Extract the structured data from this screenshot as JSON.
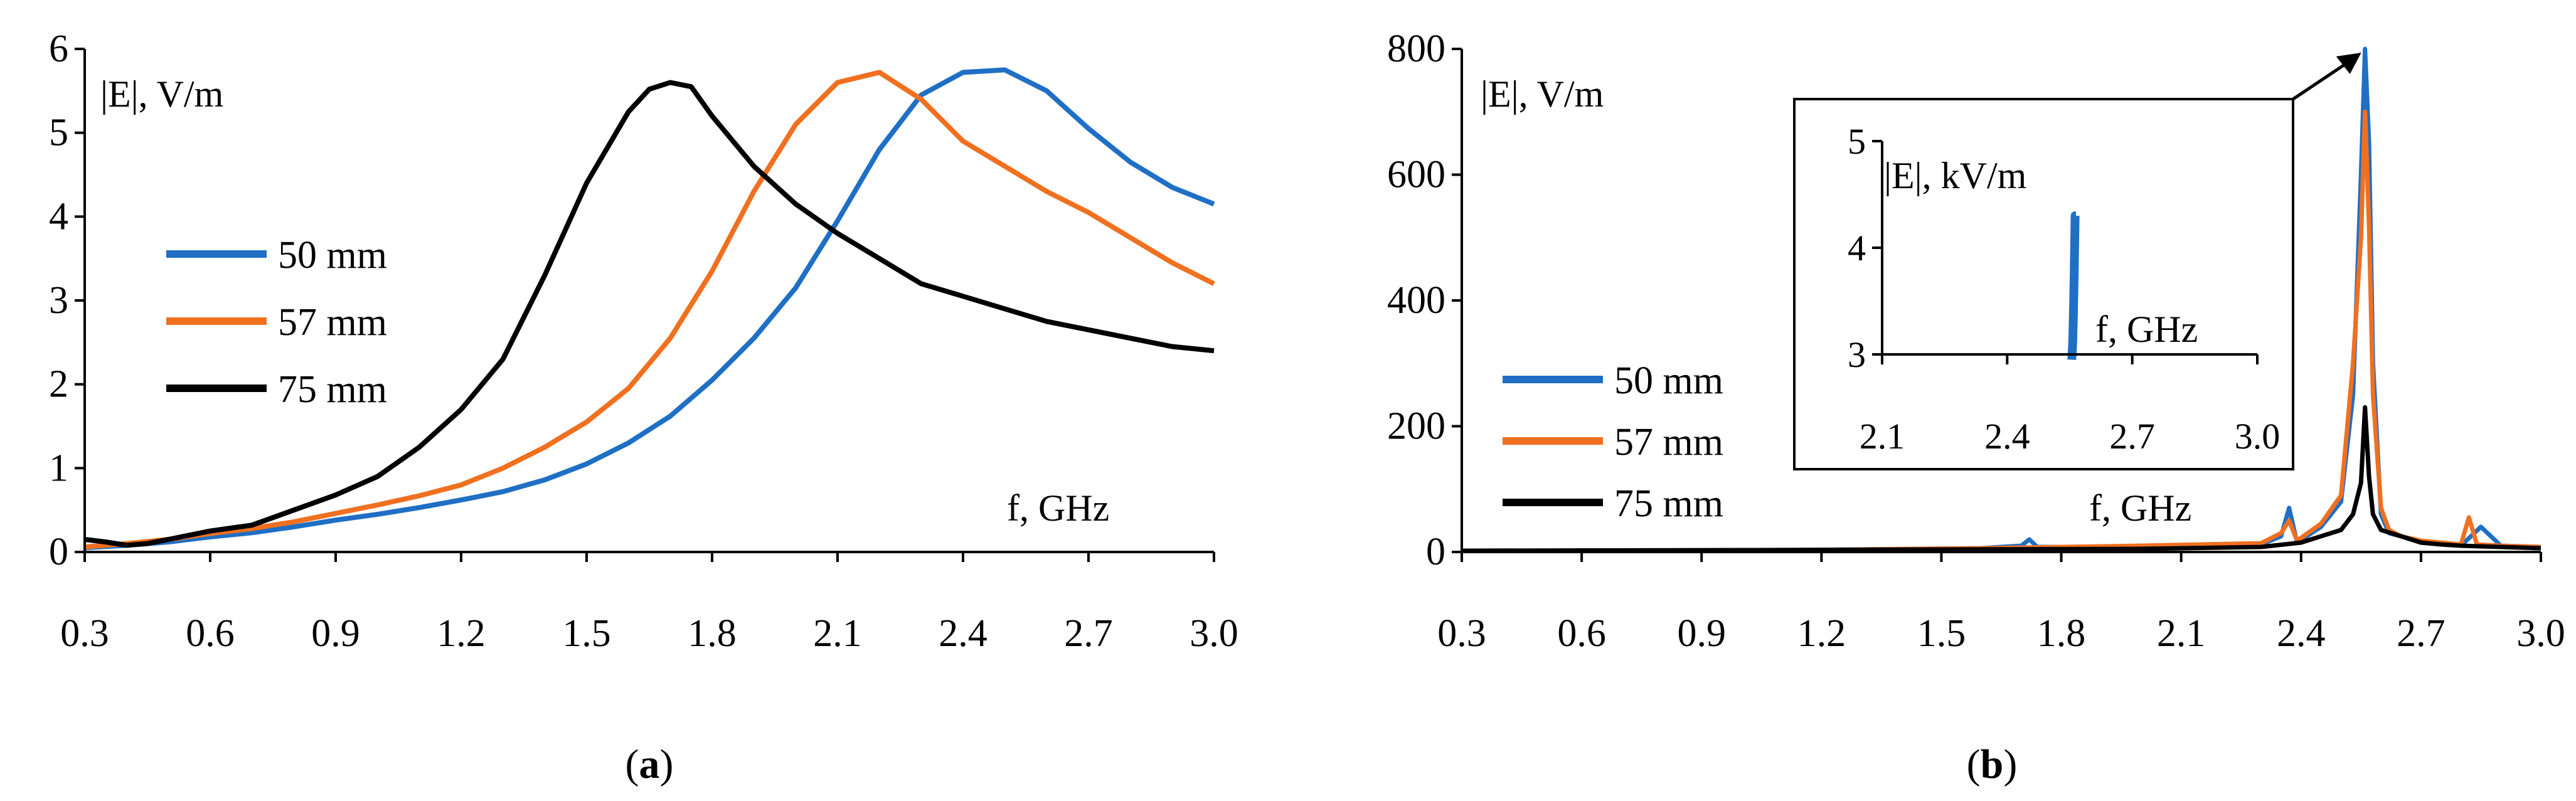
{
  "chart_data": [
    {
      "panel": "a",
      "type": "line",
      "panel_label_prefix": "(",
      "panel_label_letter": "a",
      "panel_label_suffix": ")",
      "ylabel": "|E|,  V/m",
      "xlabel": "f,  GHz",
      "xlim": [
        0.3,
        3.0
      ],
      "ylim": [
        0,
        6
      ],
      "xticks": [
        "0.3",
        "0.6",
        "0.9",
        "1.2",
        "1.5",
        "1.8",
        "2.1",
        "2.4",
        "2.7",
        "3.0"
      ],
      "yticks": [
        "0",
        "1",
        "2",
        "3",
        "4",
        "5",
        "6"
      ],
      "legend_position": "left",
      "series": [
        {
          "name": "50 mm",
          "color": "#1f6fc5",
          "x": [
            0.3,
            0.4,
            0.5,
            0.6,
            0.7,
            0.8,
            0.9,
            1.0,
            1.1,
            1.2,
            1.3,
            1.4,
            1.5,
            1.6,
            1.7,
            1.8,
            1.9,
            2.0,
            2.1,
            2.2,
            2.3,
            2.4,
            2.5,
            2.6,
            2.7,
            2.8,
            2.9,
            3.0
          ],
          "y": [
            0.05,
            0.08,
            0.12,
            0.18,
            0.23,
            0.3,
            0.38,
            0.45,
            0.53,
            0.62,
            0.72,
            0.86,
            1.05,
            1.3,
            1.62,
            2.05,
            2.55,
            3.15,
            3.95,
            4.8,
            5.45,
            5.72,
            5.75,
            5.5,
            5.05,
            4.65,
            4.35,
            4.15
          ]
        },
        {
          "name": "57 mm",
          "color": "#f07020",
          "x": [
            0.3,
            0.4,
            0.5,
            0.6,
            0.7,
            0.8,
            0.9,
            1.0,
            1.1,
            1.2,
            1.3,
            1.4,
            1.5,
            1.6,
            1.7,
            1.8,
            1.9,
            2.0,
            2.1,
            2.2,
            2.3,
            2.4,
            2.5,
            2.6,
            2.7,
            2.8,
            2.9,
            3.0
          ],
          "y": [
            0.06,
            0.1,
            0.15,
            0.22,
            0.28,
            0.36,
            0.46,
            0.56,
            0.67,
            0.8,
            1.0,
            1.25,
            1.55,
            1.95,
            2.55,
            3.35,
            4.3,
            5.1,
            5.6,
            5.72,
            5.4,
            4.9,
            4.6,
            4.3,
            4.05,
            3.75,
            3.45,
            3.2
          ]
        },
        {
          "name": "75 mm",
          "color": "#000000",
          "x": [
            0.3,
            0.35,
            0.4,
            0.45,
            0.5,
            0.6,
            0.7,
            0.8,
            0.9,
            1.0,
            1.1,
            1.2,
            1.3,
            1.4,
            1.5,
            1.6,
            1.65,
            1.7,
            1.75,
            1.8,
            1.9,
            2.0,
            2.1,
            2.2,
            2.3,
            2.4,
            2.5,
            2.6,
            2.7,
            2.8,
            2.9,
            3.0
          ],
          "y": [
            0.15,
            0.12,
            0.08,
            0.1,
            0.15,
            0.25,
            0.32,
            0.5,
            0.68,
            0.9,
            1.25,
            1.7,
            2.3,
            3.3,
            4.4,
            5.25,
            5.52,
            5.6,
            5.55,
            5.2,
            4.6,
            4.15,
            3.8,
            3.5,
            3.2,
            3.05,
            2.9,
            2.75,
            2.65,
            2.55,
            2.45,
            2.4
          ]
        }
      ]
    },
    {
      "panel": "b",
      "type": "line",
      "panel_label_prefix": "(",
      "panel_label_letter": "b",
      "panel_label_suffix": ")",
      "ylabel": "|E|,  V/m",
      "xlabel": "f,  GHz",
      "xlim": [
        0.3,
        3.0
      ],
      "ylim": [
        0,
        800
      ],
      "xticks": [
        "0.3",
        "0.6",
        "0.9",
        "1.2",
        "1.5",
        "1.8",
        "2.1",
        "2.4",
        "2.7",
        "3.0"
      ],
      "yticks": [
        "0",
        "200",
        "400",
        "600",
        "800"
      ],
      "legend_position": "bottom-left",
      "series": [
        {
          "name": "50 mm",
          "color": "#1f6fc5",
          "x": [
            0.3,
            1.0,
            1.3,
            1.6,
            1.7,
            1.72,
            1.74,
            2.0,
            2.3,
            2.35,
            2.37,
            2.39,
            2.45,
            2.5,
            2.53,
            2.55,
            2.56,
            2.57,
            2.58,
            2.6,
            2.62,
            2.65,
            2.7,
            2.8,
            2.85,
            2.9,
            3.0
          ],
          "y": [
            2,
            2,
            4,
            6,
            10,
            20,
            8,
            8,
            12,
            25,
            70,
            15,
            40,
            80,
            250,
            600,
            800,
            650,
            300,
            60,
            30,
            25,
            15,
            10,
            40,
            10,
            8
          ]
        },
        {
          "name": "57 mm",
          "color": "#f07020",
          "x": [
            0.3,
            1.0,
            1.3,
            1.6,
            1.8,
            2.0,
            2.3,
            2.35,
            2.37,
            2.39,
            2.45,
            2.5,
            2.53,
            2.55,
            2.56,
            2.57,
            2.58,
            2.6,
            2.62,
            2.65,
            2.7,
            2.8,
            2.82,
            2.84,
            2.9,
            3.0
          ],
          "y": [
            2,
            2,
            4,
            6,
            8,
            10,
            14,
            30,
            50,
            18,
            45,
            90,
            300,
            500,
            700,
            520,
            250,
            70,
            35,
            25,
            18,
            12,
            55,
            12,
            10,
            8
          ]
        },
        {
          "name": "75 mm",
          "color": "#000000",
          "x": [
            0.3,
            1.0,
            1.5,
            2.0,
            2.3,
            2.4,
            2.45,
            2.5,
            2.53,
            2.55,
            2.56,
            2.57,
            2.58,
            2.6,
            2.65,
            2.7,
            2.75,
            2.8,
            2.9,
            3.0
          ],
          "y": [
            2,
            3,
            4,
            5,
            8,
            15,
            25,
            35,
            60,
            110,
            230,
            120,
            60,
            35,
            25,
            15,
            12,
            10,
            8,
            6
          ]
        }
      ],
      "inset": {
        "ylabel": "|E|,  kV/m",
        "xlabel": "f,  GHz",
        "xlim": [
          2.1,
          3.0
        ],
        "ylim": [
          3,
          5
        ],
        "xticks": [
          "2.1",
          "2.4",
          "2.7",
          "3.0"
        ],
        "yticks": [
          "3",
          "4",
          "5"
        ],
        "series": [
          {
            "name": "50 mm",
            "color": "#1f6fc5",
            "x": [
              2.555,
              2.557,
              2.559,
              2.561,
              2.563,
              2.565
            ],
            "y": [
              2.95,
              3.1,
              3.4,
              3.8,
              4.3,
              4.3
            ]
          }
        ]
      }
    }
  ]
}
